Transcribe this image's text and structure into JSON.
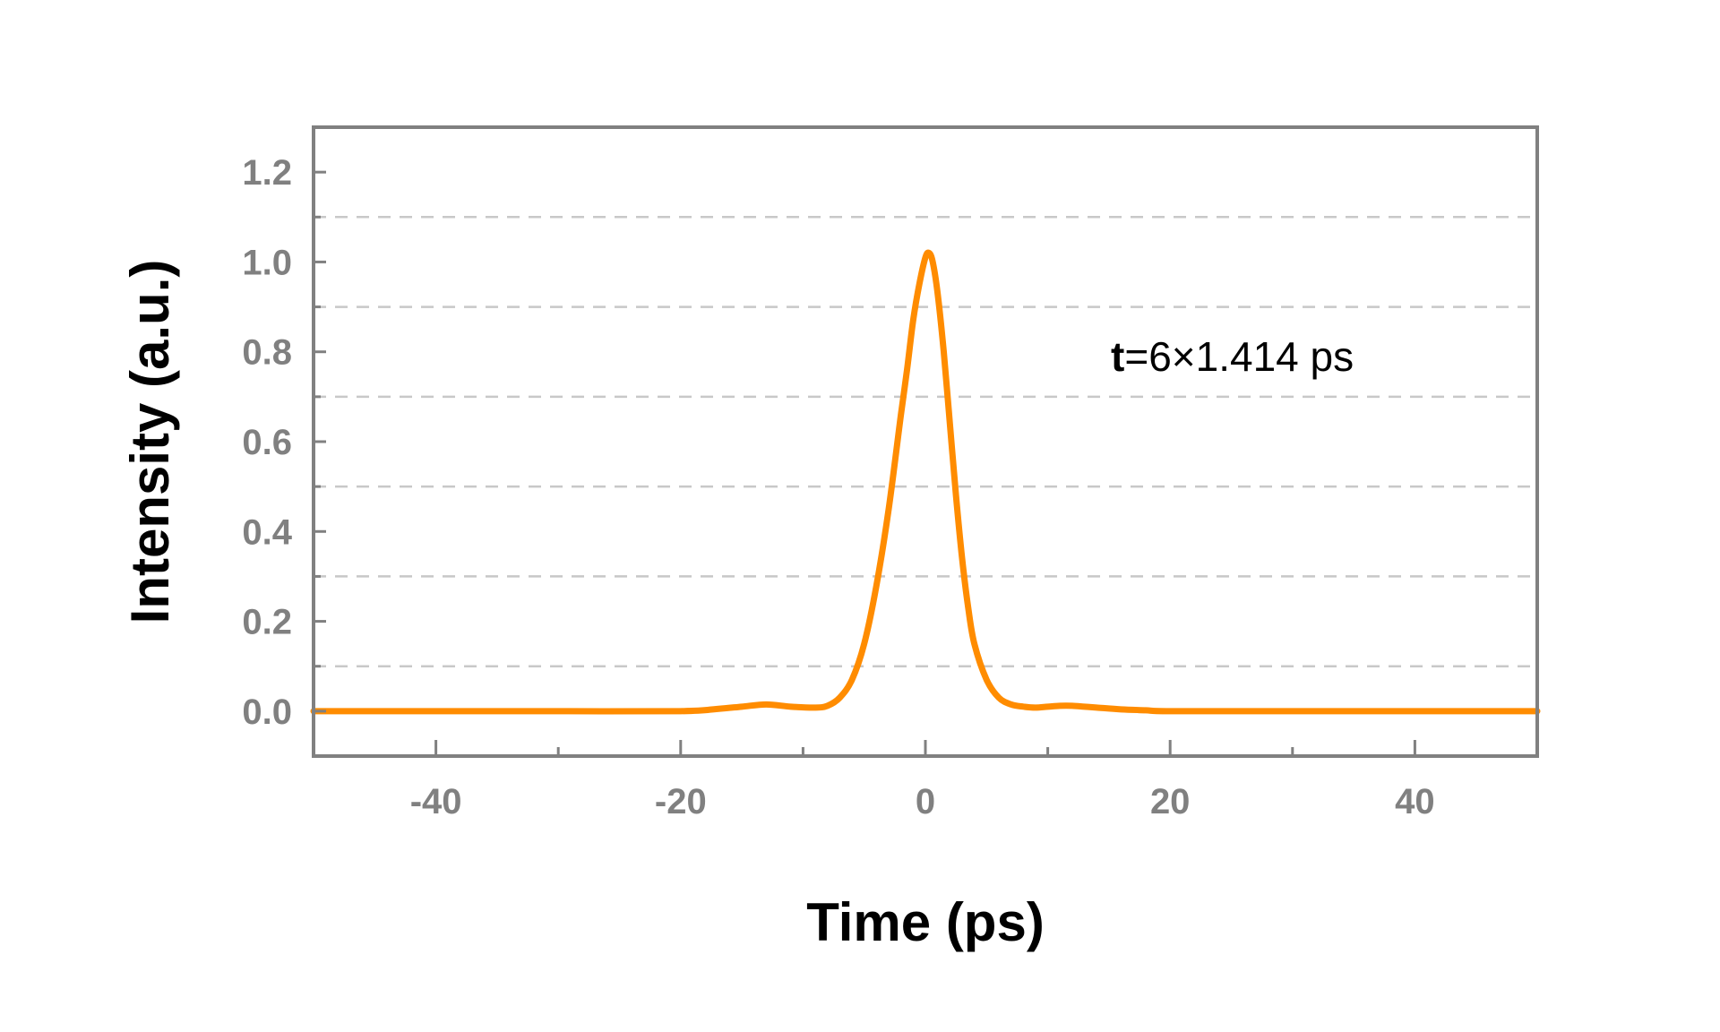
{
  "chart_data": {
    "type": "line",
    "xlabel": "Time (ps)",
    "ylabel": "Intensity (a.u.)",
    "xlim": [
      -50,
      50
    ],
    "ylim": [
      -0.1,
      1.3
    ],
    "x_ticks": [
      -40,
      -20,
      0,
      20,
      40
    ],
    "x_tick_labels": [
      "-40",
      "-20",
      "0",
      "20",
      "40"
    ],
    "x_minor_ticks": [
      -30,
      -10,
      10,
      30
    ],
    "y_ticks": [
      0.0,
      0.2,
      0.4,
      0.6,
      0.8,
      1.0,
      1.2
    ],
    "y_tick_labels": [
      "0.0",
      "0.2",
      "0.4",
      "0.6",
      "0.8",
      "1.0",
      "1.2"
    ],
    "y_gridlines": [
      0.1,
      0.3,
      0.5,
      0.7,
      0.9,
      1.1
    ],
    "grid": "horizontal dashed",
    "annotation": {
      "symbol": "t",
      "text": "=6×1.414 ps"
    },
    "series": [
      {
        "color": "#ff8c00",
        "x": [
          -50,
          -40,
          -30,
          -20,
          -17,
          -15,
          -13,
          -11,
          -9,
          -8,
          -7,
          -6,
          -5,
          -4,
          -3,
          -2,
          -1.5,
          -1,
          -0.5,
          0,
          0.3,
          0.6,
          1,
          1.5,
          2,
          2.5,
          3,
          3.5,
          4,
          5,
          6,
          7,
          8,
          9,
          10,
          11,
          12,
          13,
          14,
          16,
          18,
          20,
          30,
          40,
          50
        ],
        "y": [
          0.0,
          0.0,
          0.0,
          0.0,
          0.005,
          0.01,
          0.015,
          0.01,
          0.008,
          0.012,
          0.03,
          0.07,
          0.15,
          0.28,
          0.45,
          0.66,
          0.76,
          0.87,
          0.95,
          1.01,
          1.02,
          1.0,
          0.93,
          0.8,
          0.64,
          0.48,
          0.34,
          0.23,
          0.15,
          0.07,
          0.03,
          0.015,
          0.01,
          0.008,
          0.01,
          0.012,
          0.012,
          0.01,
          0.008,
          0.004,
          0.002,
          0.0,
          0.0,
          0.0,
          0.0
        ]
      }
    ]
  }
}
